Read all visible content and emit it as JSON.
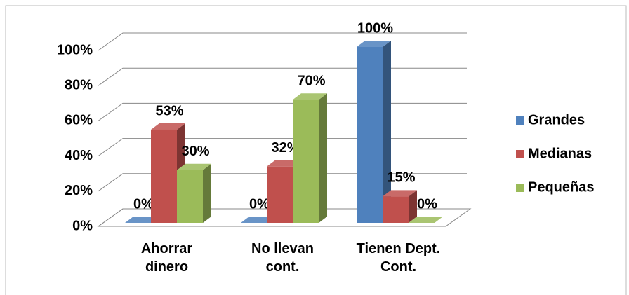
{
  "chart_data": {
    "type": "bar3d",
    "categories": [
      "Ahorrar dinero",
      "No llevan cont.",
      "Tienen Dept. Cont."
    ],
    "series": [
      {
        "name": "Grandes",
        "color": "#4f81bd",
        "values": [
          0,
          0,
          100
        ],
        "value_labels": [
          "0%",
          "0%",
          "100%"
        ]
      },
      {
        "name": "Medianas",
        "color": "#c0504d",
        "values": [
          53,
          32,
          15
        ],
        "value_labels": [
          "53%",
          "32%",
          "15%"
        ]
      },
      {
        "name": "Pequeñas",
        "color": "#9bbb59",
        "values": [
          30,
          70,
          0
        ],
        "value_labels": [
          "30%",
          "70%",
          "0%"
        ]
      }
    ],
    "ylim": [
      0,
      100
    ],
    "yticks": [
      {
        "value": 0,
        "label": "0%"
      },
      {
        "value": 20,
        "label": "20%"
      },
      {
        "value": 40,
        "label": "40%"
      },
      {
        "value": 60,
        "label": "60%"
      },
      {
        "value": 80,
        "label": "80%"
      },
      {
        "value": 100,
        "label": "100%"
      }
    ],
    "grid": true,
    "legend": "right"
  }
}
